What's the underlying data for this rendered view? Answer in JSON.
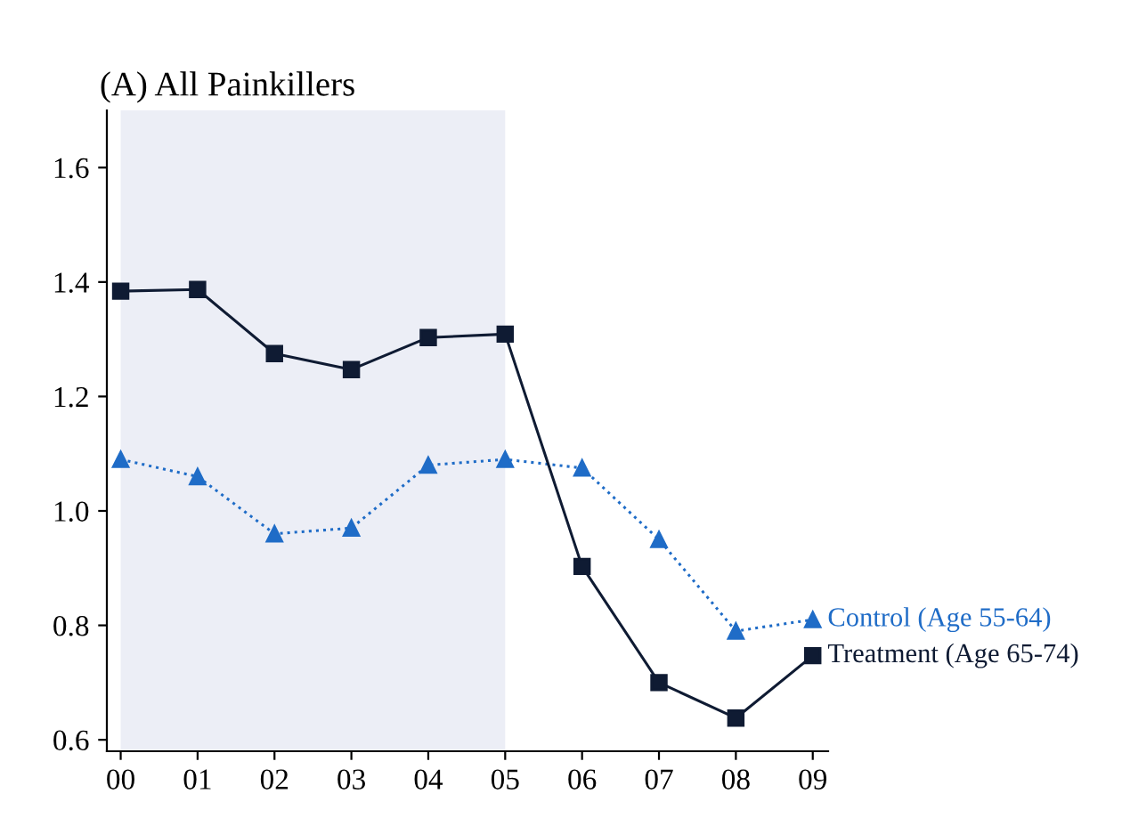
{
  "chart_data": {
    "type": "line",
    "title": "(A) All Painkillers",
    "categories": [
      "00",
      "01",
      "02",
      "03",
      "04",
      "05",
      "06",
      "07",
      "08",
      "09"
    ],
    "series": [
      {
        "name": "Control (Age 55-64)",
        "color": "#1f6cc7",
        "marker": "triangle",
        "line_style": "dotted",
        "values": [
          1.09,
          1.06,
          0.96,
          0.97,
          1.08,
          1.09,
          1.075,
          0.95,
          0.79,
          0.81
        ]
      },
      {
        "name": "Treatment (Age 65-74)",
        "color": "#0f1b33",
        "marker": "square",
        "line_style": "solid",
        "values": [
          1.384,
          1.387,
          1.275,
          1.247,
          1.303,
          1.309,
          0.903,
          0.7,
          0.638,
          0.747
        ]
      }
    ],
    "ylim": [
      0.58,
      1.7
    ],
    "yticks": [
      0.6,
      0.8,
      {
        "value": 1,
        "label": "1.0"
      },
      1.2,
      1.4,
      1.6
    ],
    "bands": [
      {
        "axis": "x",
        "from": "00",
        "to": "05",
        "color": "#eceef6"
      }
    ],
    "grid": false,
    "legend": false
  }
}
